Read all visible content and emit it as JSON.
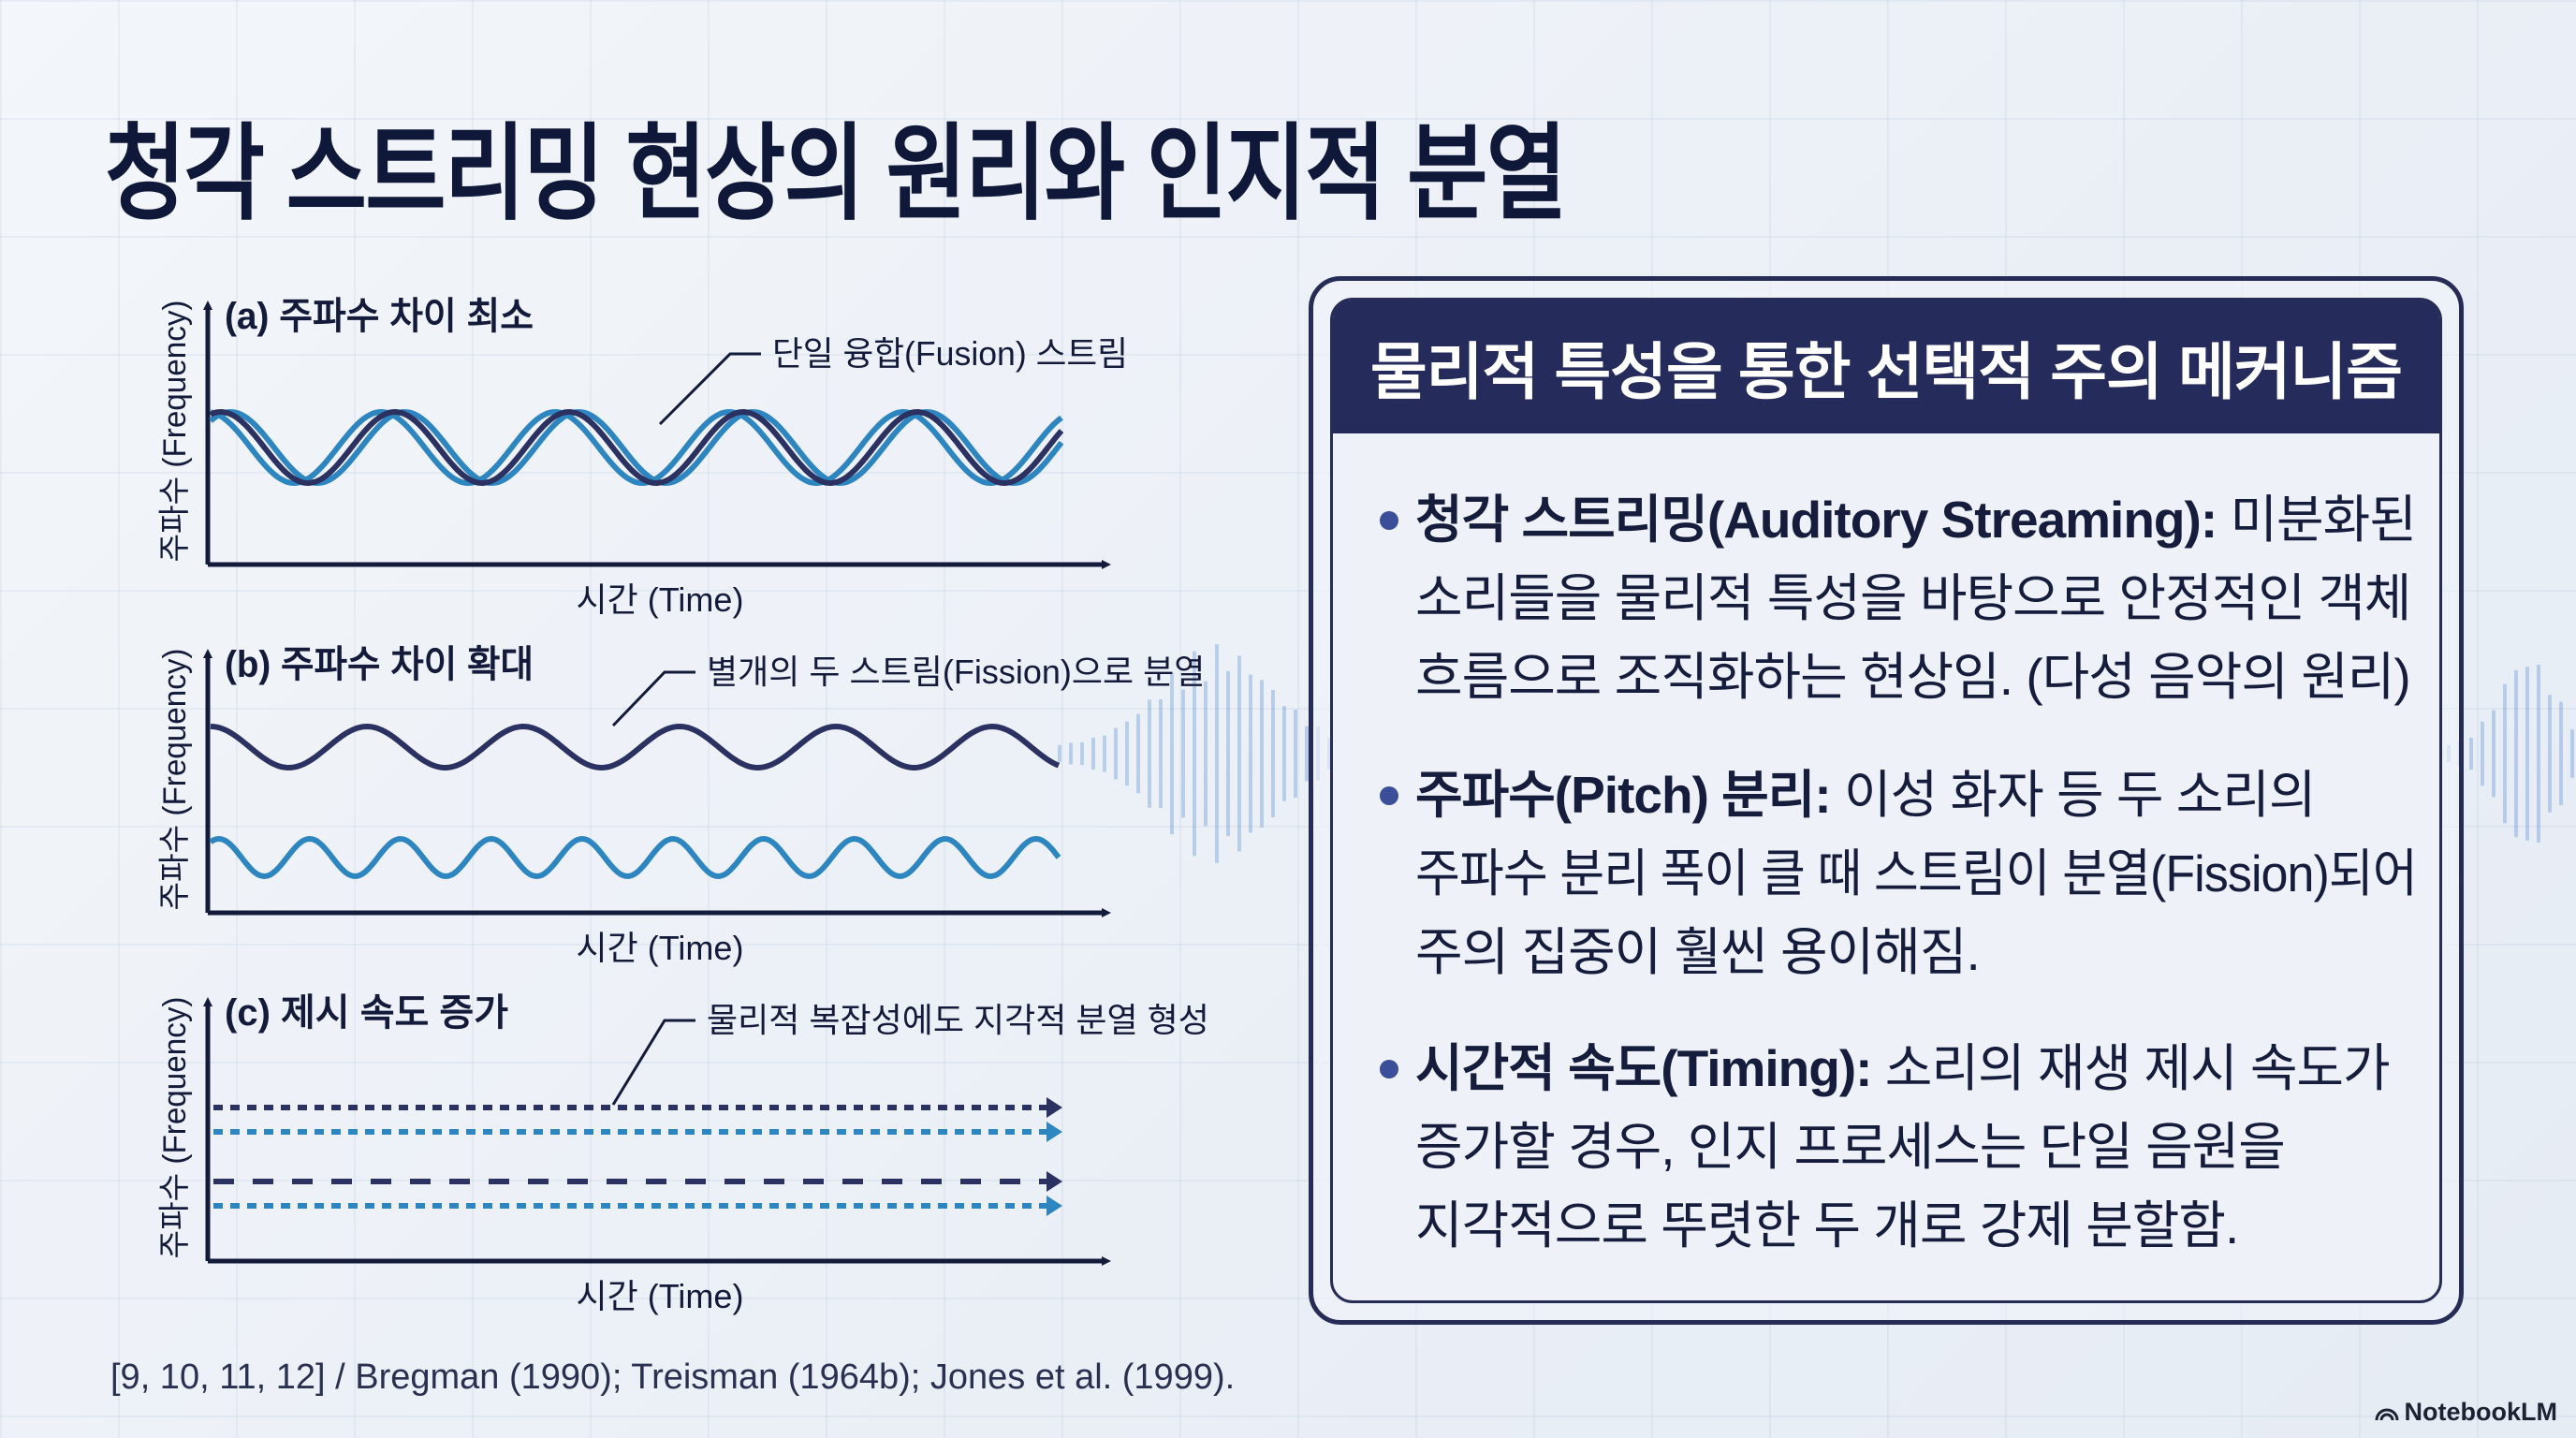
{
  "title": "청각 스트리밍 현상의 원리와 인지적 분열",
  "panels": [
    {
      "label": "(a) 주파수 차이 최소",
      "annotation": "단일 융합(Fusion) 스트림",
      "y_axis": "주파수 (Frequency)",
      "x_axis": "시간 (Time)"
    },
    {
      "label": "(b) 주파수 차이 확대",
      "annotation": "별개의 두 스트림(Fission)으로 분열",
      "y_axis": "주파수 (Frequency)",
      "x_axis": "시간 (Time)"
    },
    {
      "label": "(c) 제시 속도 증가",
      "annotation": "물리적 복잡성에도 지각적 분열 형성",
      "y_axis": "주파수 (Frequency)",
      "x_axis": "시간 (Time)"
    }
  ],
  "citation": "[9, 10, 11, 12] / Bregman (1990); Treisman (1964b); Jones et al. (1999).",
  "mechanism": {
    "header": "물리적 특성을 통한 선택적 주의 메커니즘",
    "bullets": [
      {
        "term": "청각 스트리밍(Auditory Streaming):",
        "lines": [
          " 미분화된",
          "소리들을 물리적 특성을 바탕으로 안정적인 객체",
          "흐름으로 조직화하는 현상임. (다성 음악의 원리)"
        ]
      },
      {
        "term": "주파수(Pitch) 분리:",
        "lines": [
          " 이성 화자 등 두 소리의",
          "주파수 분리 폭이 클 때 스트림이 분열(Fission)되어",
          "주의 집중이 훨씬 용이해짐."
        ]
      },
      {
        "term": "시간적 속도(Timing):",
        "lines": [
          " 소리의 재생 제시 속도가",
          "증가할 경우, 인지 프로세스는 단일 음원을",
          "지각적으로 뚜렷한 두 개로 강제 분할함."
        ]
      }
    ]
  },
  "brand": "NotebookLM",
  "colors": {
    "navy": "#252c5c",
    "dark_wave": "#2b3160",
    "blue_wave": "#2e86c1",
    "text": "#141a3a"
  }
}
